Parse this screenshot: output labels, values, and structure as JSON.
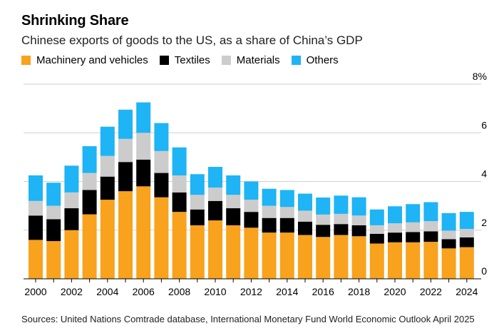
{
  "header": {
    "title": "Shrinking Share",
    "subtitle": "Chinese exports of goods to the US, as a share of China’s GDP"
  },
  "footer": {
    "source": "Sources: United Nations Comtrade database, International Monetary Fund World Economic Outlook April 2025"
  },
  "colors": {
    "machinery": "#f8a21d",
    "textiles": "#000000",
    "materials": "#cccccc",
    "others": "#1eb4f5",
    "grid": "#cfcfcf"
  },
  "chart_data": {
    "type": "bar",
    "stacked": true,
    "title": "Shrinking Share",
    "subtitle": "Chinese exports of goods to the US, as a share of China’s GDP",
    "xlabel": "",
    "ylabel": "",
    "ylim": [
      0,
      8
    ],
    "yticks": [
      0,
      2,
      4,
      6,
      8
    ],
    "ytick_labels": [
      "0",
      "2",
      "4",
      "6",
      "8%"
    ],
    "grid": true,
    "legend_position": "top-left",
    "categories": [
      "2000",
      "2001",
      "2002",
      "2003",
      "2004",
      "2005",
      "2006",
      "2007",
      "2008",
      "2009",
      "2010",
      "2011",
      "2012",
      "2013",
      "2014",
      "2015",
      "2016",
      "2017",
      "2018",
      "2019",
      "2020",
      "2021",
      "2022",
      "2023",
      "2024"
    ],
    "xtick_labels": [
      "2000",
      "2002",
      "2004",
      "2006",
      "2008",
      "2010",
      "2012",
      "2014",
      "2016",
      "2018",
      "2020",
      "2022",
      "2024"
    ],
    "series": [
      {
        "name": "Machinery and vehicles",
        "color": "#f8a21d",
        "values": [
          1.6,
          1.55,
          2.0,
          2.65,
          3.25,
          3.6,
          3.8,
          3.35,
          2.75,
          2.2,
          2.4,
          2.2,
          2.1,
          1.9,
          1.9,
          1.8,
          1.72,
          1.8,
          1.75,
          1.45,
          1.5,
          1.5,
          1.52,
          1.25,
          1.3
        ]
      },
      {
        "name": "Textiles",
        "color": "#000000",
        "values": [
          1.0,
          0.9,
          0.9,
          1.0,
          0.95,
          1.2,
          1.1,
          1.0,
          0.8,
          0.65,
          0.8,
          0.7,
          0.65,
          0.6,
          0.6,
          0.55,
          0.5,
          0.45,
          0.45,
          0.4,
          0.4,
          0.42,
          0.43,
          0.38,
          0.4
        ]
      },
      {
        "name": "Materials",
        "color": "#cccccc",
        "values": [
          0.6,
          0.55,
          0.65,
          0.7,
          0.85,
          0.95,
          1.1,
          0.9,
          0.7,
          0.6,
          0.55,
          0.55,
          0.5,
          0.5,
          0.45,
          0.45,
          0.42,
          0.42,
          0.4,
          0.35,
          0.38,
          0.4,
          0.42,
          0.35,
          0.35
        ]
      },
      {
        "name": "Others",
        "color": "#1eb4f5",
        "values": [
          1.05,
          0.95,
          1.1,
          1.1,
          1.2,
          1.2,
          1.25,
          1.15,
          1.15,
          0.85,
          0.85,
          0.8,
          0.75,
          0.7,
          0.7,
          0.7,
          0.7,
          0.75,
          0.75,
          0.65,
          0.7,
          0.75,
          0.78,
          0.72,
          0.7
        ]
      }
    ]
  }
}
